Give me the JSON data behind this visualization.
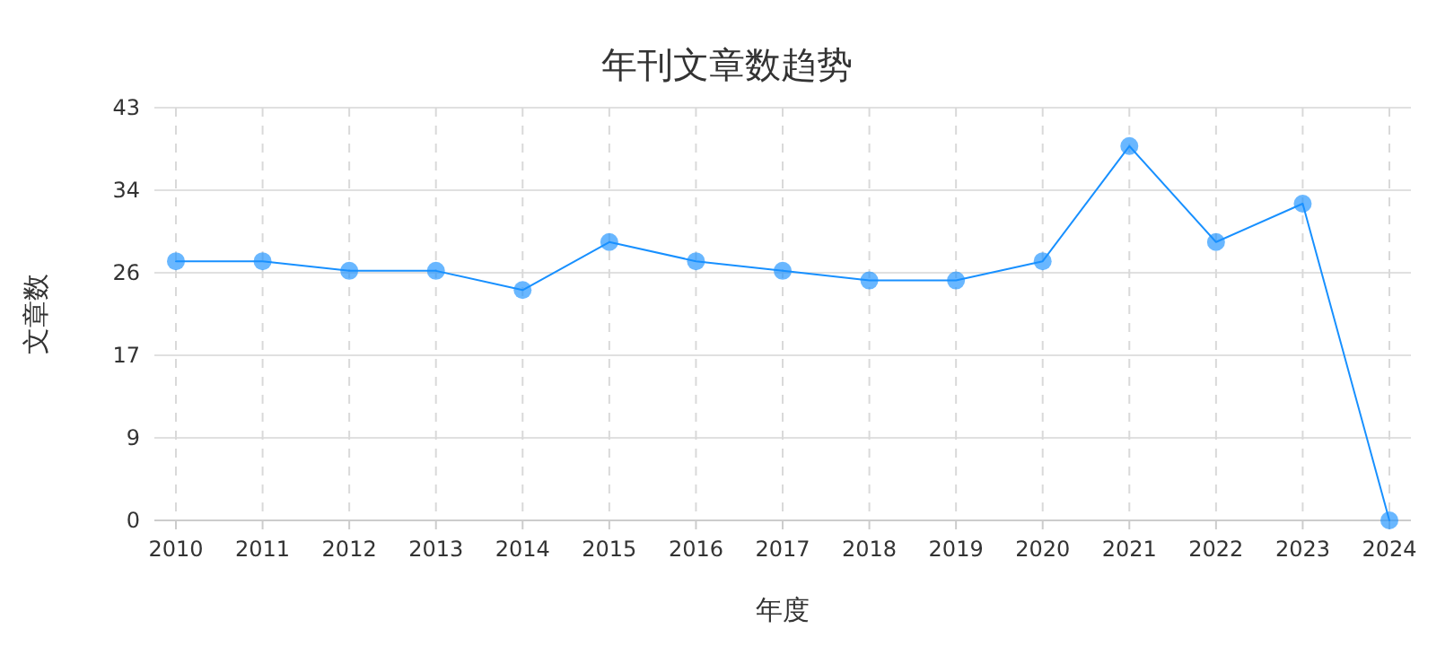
{
  "chart_data": {
    "type": "line",
    "title": "年刊文章数趋势",
    "xlabel": "年度",
    "ylabel": "文章数",
    "categories": [
      "2010",
      "2011",
      "2012",
      "2013",
      "2014",
      "2015",
      "2016",
      "2017",
      "2018",
      "2019",
      "2020",
      "2021",
      "2022",
      "2023",
      "2024"
    ],
    "series": [
      {
        "color": "#1890ff",
        "values": [
          27,
          27,
          26,
          26,
          24,
          29,
          27,
          26,
          25,
          25,
          27,
          39,
          29,
          33,
          0
        ]
      }
    ],
    "ylim": [
      0,
      43
    ],
    "yticks": [
      0,
      {
        "value": 8.6,
        "label": "9"
      },
      {
        "value": 17.2,
        "label": "17"
      },
      {
        "value": 25.8,
        "label": "26"
      },
      {
        "value": 34.4,
        "label": "34"
      },
      43
    ],
    "grid": true,
    "marker": "circle",
    "line_style": "solid"
  }
}
